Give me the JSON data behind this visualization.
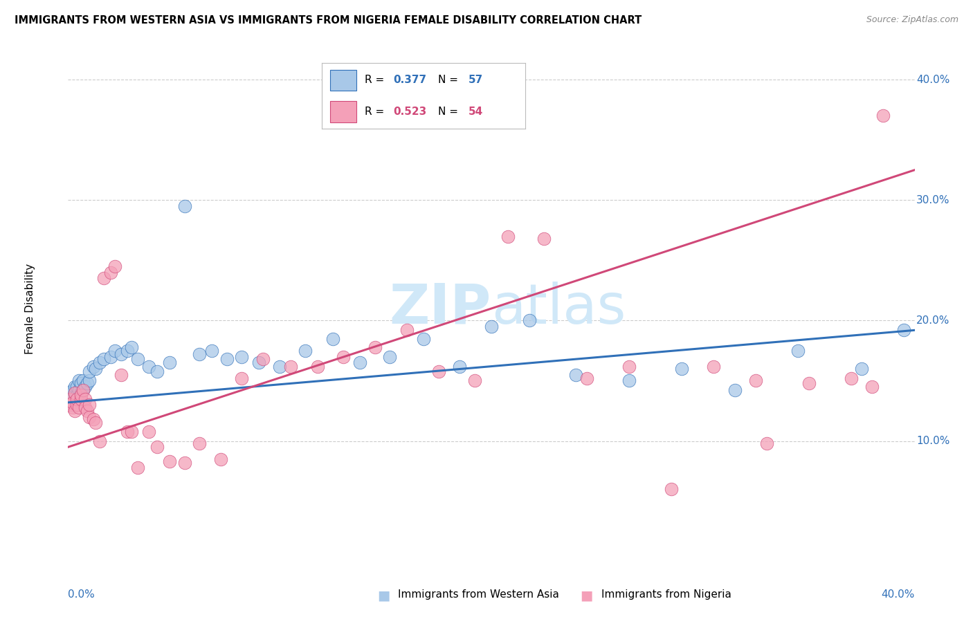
{
  "title": "IMMIGRANTS FROM WESTERN ASIA VS IMMIGRANTS FROM NIGERIA FEMALE DISABILITY CORRELATION CHART",
  "source": "Source: ZipAtlas.com",
  "ylabel": "Female Disability",
  "legend_label1": "Immigrants from Western Asia",
  "legend_label2": "Immigrants from Nigeria",
  "r1": 0.377,
  "n1": 57,
  "r2": 0.523,
  "n2": 54,
  "color_blue": "#a8c8e8",
  "color_pink": "#f4a0b8",
  "line_color_blue": "#3070b8",
  "line_color_pink": "#d04878",
  "watermark_color": "#d0e8f8",
  "xlim": [
    0.0,
    0.4
  ],
  "ylim": [
    0.0,
    0.42
  ],
  "yticks": [
    0.1,
    0.2,
    0.3,
    0.4
  ],
  "blue_x": [
    0.001,
    0.001,
    0.001,
    0.002,
    0.002,
    0.002,
    0.003,
    0.003,
    0.003,
    0.004,
    0.004,
    0.005,
    0.005,
    0.005,
    0.006,
    0.006,
    0.007,
    0.007,
    0.008,
    0.009,
    0.01,
    0.01,
    0.012,
    0.013,
    0.015,
    0.017,
    0.02,
    0.022,
    0.025,
    0.028,
    0.03,
    0.033,
    0.038,
    0.042,
    0.048,
    0.055,
    0.062,
    0.068,
    0.075,
    0.082,
    0.09,
    0.1,
    0.112,
    0.125,
    0.138,
    0.152,
    0.168,
    0.185,
    0.2,
    0.218,
    0.24,
    0.265,
    0.29,
    0.315,
    0.345,
    0.375,
    0.395
  ],
  "blue_y": [
    0.135,
    0.138,
    0.14,
    0.13,
    0.136,
    0.142,
    0.133,
    0.14,
    0.145,
    0.138,
    0.145,
    0.135,
    0.142,
    0.15,
    0.14,
    0.148,
    0.142,
    0.15,
    0.145,
    0.148,
    0.15,
    0.158,
    0.162,
    0.16,
    0.165,
    0.168,
    0.17,
    0.175,
    0.172,
    0.175,
    0.178,
    0.168,
    0.162,
    0.158,
    0.165,
    0.295,
    0.172,
    0.175,
    0.168,
    0.17,
    0.165,
    0.162,
    0.175,
    0.185,
    0.165,
    0.17,
    0.185,
    0.162,
    0.195,
    0.2,
    0.155,
    0.15,
    0.16,
    0.142,
    0.175,
    0.16,
    0.192
  ],
  "pink_x": [
    0.001,
    0.001,
    0.002,
    0.002,
    0.003,
    0.003,
    0.004,
    0.004,
    0.005,
    0.006,
    0.006,
    0.007,
    0.008,
    0.008,
    0.009,
    0.01,
    0.01,
    0.012,
    0.013,
    0.015,
    0.017,
    0.02,
    0.022,
    0.025,
    0.028,
    0.03,
    0.033,
    0.038,
    0.042,
    0.048,
    0.055,
    0.062,
    0.072,
    0.082,
    0.092,
    0.105,
    0.118,
    0.13,
    0.145,
    0.16,
    0.175,
    0.192,
    0.208,
    0.225,
    0.245,
    0.265,
    0.285,
    0.305,
    0.325,
    0.35,
    0.37,
    0.385,
    0.33,
    0.38
  ],
  "pink_y": [
    0.135,
    0.13,
    0.128,
    0.132,
    0.14,
    0.125,
    0.13,
    0.135,
    0.128,
    0.135,
    0.138,
    0.142,
    0.135,
    0.128,
    0.125,
    0.12,
    0.13,
    0.118,
    0.115,
    0.1,
    0.235,
    0.24,
    0.245,
    0.155,
    0.108,
    0.108,
    0.078,
    0.108,
    0.095,
    0.083,
    0.082,
    0.098,
    0.085,
    0.152,
    0.168,
    0.162,
    0.162,
    0.17,
    0.178,
    0.192,
    0.158,
    0.15,
    0.27,
    0.268,
    0.152,
    0.162,
    0.06,
    0.162,
    0.15,
    0.148,
    0.152,
    0.37,
    0.098,
    0.145
  ],
  "blue_line": [
    0.0,
    0.4,
    0.132,
    0.192
  ],
  "pink_line": [
    0.0,
    0.4,
    0.095,
    0.325
  ]
}
